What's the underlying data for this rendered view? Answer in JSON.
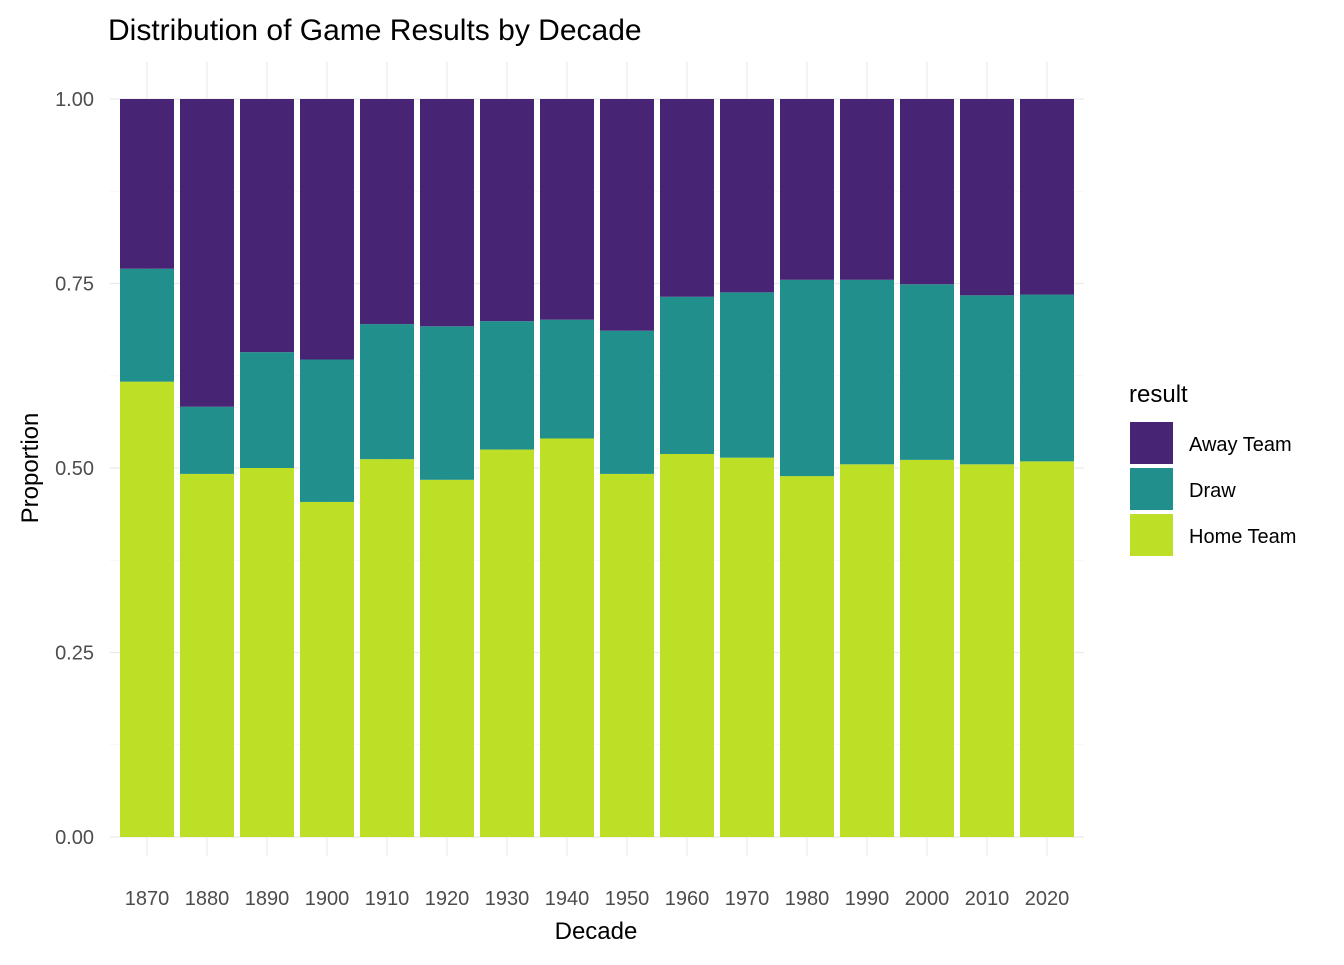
{
  "chart_data": {
    "type": "bar",
    "stacked": true,
    "title": "Distribution of Game Results by Decade",
    "xlabel": "Decade",
    "ylabel": "Proportion",
    "ylim": [
      0,
      1
    ],
    "yticks": [
      "0.00",
      "0.25",
      "0.50",
      "0.75",
      "1.00"
    ],
    "grid": true,
    "legend": {
      "title": "result",
      "placement": "right"
    },
    "categories": [
      "1870",
      "1880",
      "1890",
      "1900",
      "1910",
      "1920",
      "1930",
      "1940",
      "1950",
      "1960",
      "1970",
      "1980",
      "1990",
      "2000",
      "2010",
      "2020"
    ],
    "series": [
      {
        "name": "Home Team",
        "color": "#bddf26",
        "values": [
          0.617,
          0.492,
          0.5,
          0.454,
          0.512,
          0.484,
          0.525,
          0.54,
          0.492,
          0.519,
          0.514,
          0.489,
          0.505,
          0.511,
          0.505,
          0.509
        ]
      },
      {
        "name": "Draw",
        "color": "#21908c",
        "values": [
          0.153,
          0.091,
          0.157,
          0.193,
          0.183,
          0.208,
          0.174,
          0.161,
          0.194,
          0.213,
          0.224,
          0.266,
          0.25,
          0.238,
          0.229,
          0.226
        ]
      },
      {
        "name": "Away Team",
        "color": "#482475",
        "values": [
          0.23,
          0.417,
          0.343,
          0.353,
          0.305,
          0.308,
          0.301,
          0.299,
          0.314,
          0.268,
          0.262,
          0.245,
          0.245,
          0.251,
          0.266,
          0.265
        ]
      }
    ]
  }
}
